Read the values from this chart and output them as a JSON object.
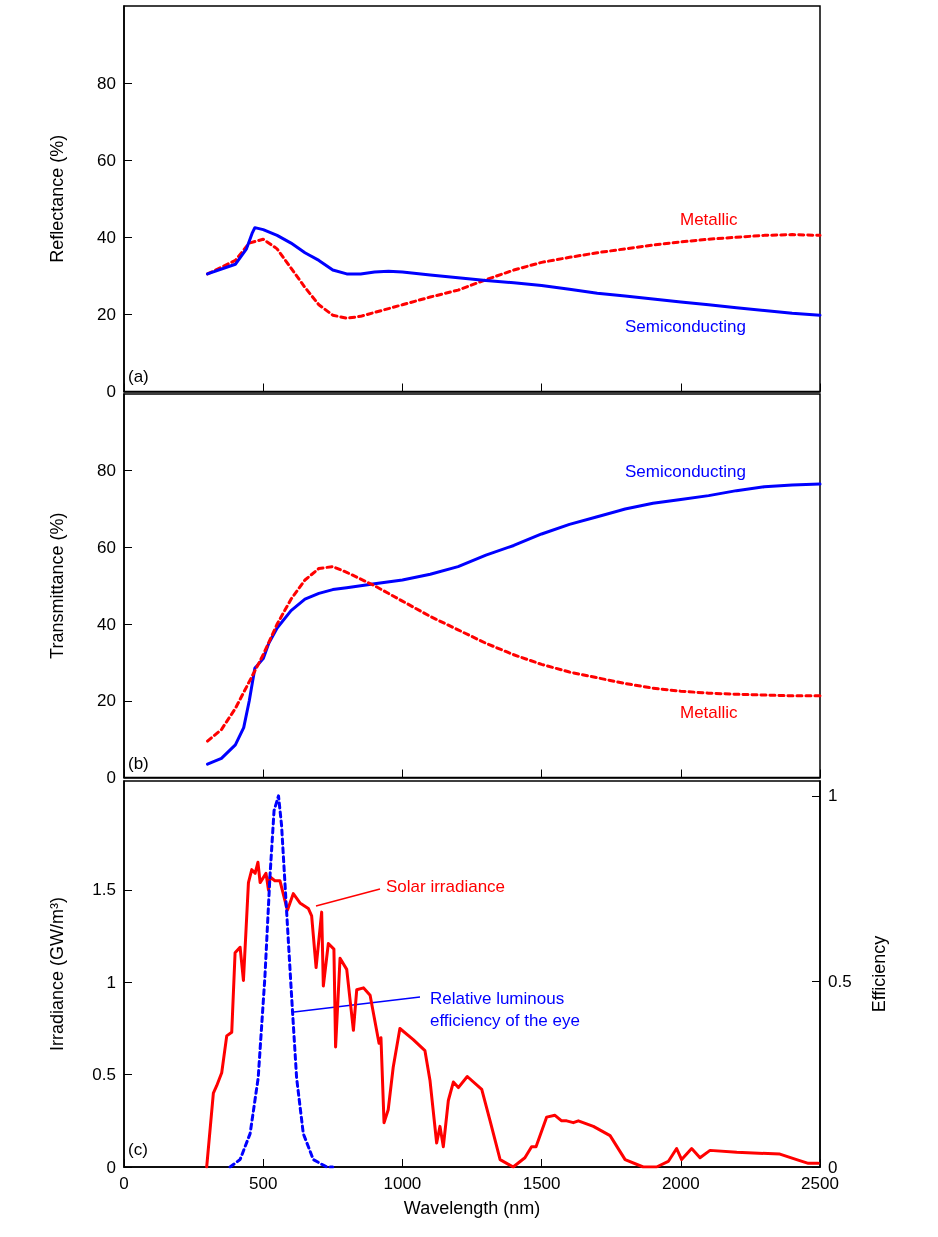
{
  "chart_data": [
    {
      "type": "line",
      "ylabel": "Reflectance (%)",
      "annotations": [
        "(a)"
      ],
      "xlim": [
        0,
        2500
      ],
      "xticks": [
        0,
        500,
        1000,
        1500,
        2000,
        2500
      ],
      "ylim": [
        0,
        100
      ],
      "yticks": [
        0,
        20,
        40,
        60,
        80
      ],
      "tick_labels": "y",
      "series": [
        {
          "name": "Metallic",
          "color": "#ff0000",
          "line_style": "dashed",
          "x": [
            300,
            400,
            450,
            500,
            550,
            600,
            650,
            700,
            750,
            800,
            850,
            900,
            1000,
            1100,
            1200,
            1300,
            1400,
            1500,
            1600,
            1700,
            1800,
            1900,
            2000,
            2100,
            2200,
            2300,
            2400,
            2500
          ],
          "values": [
            30.5,
            34,
            38.5,
            39.5,
            37,
            32,
            27,
            22.5,
            19.8,
            19,
            19.5,
            20.5,
            22.5,
            24.5,
            26.3,
            29,
            31.5,
            33.5,
            34.8,
            36,
            37,
            38,
            38.8,
            39.5,
            40,
            40.5,
            40.7,
            40.5
          ]
        },
        {
          "name": "Semiconducting",
          "color": "#0000ff",
          "line_style": "solid",
          "x": [
            300,
            400,
            440,
            460,
            470,
            500,
            550,
            600,
            650,
            700,
            750,
            800,
            850,
            900,
            950,
            1000,
            1100,
            1200,
            1300,
            1400,
            1500,
            1600,
            1700,
            1800,
            1900,
            2000,
            2100,
            2200,
            2300,
            2400,
            2500
          ],
          "values": [
            30.5,
            33,
            37,
            41,
            42.5,
            42,
            40.5,
            38.5,
            36,
            34,
            31.5,
            30.5,
            30.5,
            31,
            31.2,
            31,
            30.2,
            29.5,
            28.8,
            28.2,
            27.5,
            26.5,
            25.5,
            24.8,
            24,
            23.2,
            22.5,
            21.7,
            21,
            20.3,
            19.8
          ]
        }
      ]
    },
    {
      "type": "line",
      "ylabel": "Transmittance (%)",
      "annotations": [
        "(b)"
      ],
      "xlim": [
        0,
        2500
      ],
      "xticks": [
        0,
        500,
        1000,
        1500,
        2000,
        2500
      ],
      "ylim": [
        0,
        100
      ],
      "yticks": [
        0,
        20,
        40,
        60,
        80
      ],
      "tick_labels": "y",
      "series": [
        {
          "name": "Semiconducting",
          "color": "#0000ff",
          "line_style": "solid",
          "x": [
            300,
            350,
            400,
            430,
            450,
            470,
            500,
            520,
            550,
            600,
            650,
            700,
            750,
            800,
            900,
            1000,
            1100,
            1200,
            1300,
            1400,
            1500,
            1600,
            1700,
            1800,
            1900,
            2000,
            2100,
            2200,
            2300,
            2400,
            2500
          ],
          "values": [
            3.5,
            5,
            8.5,
            13,
            20,
            28.5,
            31,
            35,
            39,
            43.5,
            46.5,
            48,
            49,
            49.5,
            50.5,
            51.5,
            53,
            55,
            58,
            60.5,
            63.5,
            66,
            68,
            70,
            71.5,
            72.5,
            73.5,
            74.8,
            75.8,
            76.3,
            76.5
          ]
        },
        {
          "name": "Metallic",
          "color": "#ff0000",
          "line_style": "dashed",
          "x": [
            300,
            350,
            400,
            450,
            500,
            550,
            600,
            650,
            700,
            750,
            800,
            900,
            1000,
            1100,
            1200,
            1300,
            1400,
            1500,
            1600,
            1700,
            1800,
            1900,
            2000,
            2100,
            2200,
            2300,
            2400,
            2500
          ],
          "values": [
            9.5,
            12.5,
            18,
            25,
            32,
            40,
            46.5,
            51.5,
            54.5,
            55,
            53.5,
            50,
            46,
            42,
            38.5,
            35,
            32,
            29.5,
            27.5,
            26,
            24.5,
            23.3,
            22.5,
            22,
            21.7,
            21.5,
            21.3,
            21.3
          ]
        }
      ]
    },
    {
      "type": "line",
      "xlabel": "Wavelength (nm)",
      "ylabel": "Irradiance (GW/m³)",
      "y2label": "Efficiency",
      "annotations": [
        "(c)"
      ],
      "xlim": [
        0,
        2500
      ],
      "xticks": [
        0,
        500,
        1000,
        1500,
        2000,
        2500
      ],
      "ylim": [
        0,
        2.09
      ],
      "yticks": [
        0,
        0.5,
        1,
        1.5
      ],
      "y2lim": [
        0,
        1.04
      ],
      "y2ticks": [
        0,
        0.5,
        1
      ],
      "series": [
        {
          "name": "Solar irradiance",
          "color": "#ff0000",
          "line_style": "solid",
          "x": [
            297,
            321,
            333,
            351,
            369,
            387,
            399,
            417,
            429,
            447,
            459,
            471,
            481,
            489,
            510,
            519,
            525,
            542,
            560,
            587,
            608,
            632,
            662,
            674,
            690,
            710,
            716,
            734,
            754,
            760,
            776,
            800,
            824,
            836,
            860,
            884,
            916,
            923,
            934,
            949,
            967,
            991,
            1039,
            1081,
            1099,
            1123,
            1135,
            1147,
            1165,
            1183,
            1201,
            1233,
            1285,
            1315,
            1351,
            1398,
            1440,
            1464,
            1480,
            1518,
            1548,
            1572,
            1590,
            1614,
            1632,
            1686,
            1746,
            1800,
            1865,
            1913,
            1955,
            1985,
            2003,
            2039,
            2069,
            2105,
            2201,
            2356,
            2416,
            2458,
            2494
          ],
          "values": [
            0,
            0.4,
            0.44,
            0.51,
            0.71,
            0.73,
            1.16,
            1.19,
            1.01,
            1.54,
            1.61,
            1.59,
            1.65,
            1.54,
            1.59,
            1.5,
            1.57,
            1.55,
            1.55,
            1.39,
            1.48,
            1.43,
            1.4,
            1.36,
            1.08,
            1.38,
            0.98,
            1.21,
            1.18,
            0.65,
            1.13,
            1.07,
            0.74,
            0.96,
            0.97,
            0.93,
            0.67,
            0.7,
            0.24,
            0.31,
            0.54,
            0.75,
            0.69,
            0.63,
            0.47,
            0.13,
            0.22,
            0.11,
            0.36,
            0.46,
            0.43,
            0.49,
            0.42,
            0.25,
            0.04,
            0,
            0.05,
            0.11,
            0.11,
            0.27,
            0.28,
            0.25,
            0.25,
            0.24,
            0.25,
            0.22,
            0.17,
            0.04,
            0,
            0,
            0.03,
            0.1,
            0.04,
            0.1,
            0.05,
            0.09,
            0.08,
            0.07,
            0.04,
            0.02,
            0.02
          ]
        },
        {
          "name": "Relative luminous efficiency of the eye",
          "color": "#0000ff",
          "line_style": "dashed",
          "axis": "y2",
          "x": [
            381,
            417,
            453,
            482,
            506,
            524,
            539,
            555,
            566,
            584,
            602,
            620,
            644,
            680,
            728,
            750
          ],
          "values": [
            0,
            0.02,
            0.09,
            0.24,
            0.51,
            0.78,
            0.96,
            1,
            0.92,
            0.69,
            0.46,
            0.24,
            0.09,
            0.02,
            0,
            0
          ]
        }
      ]
    }
  ]
}
